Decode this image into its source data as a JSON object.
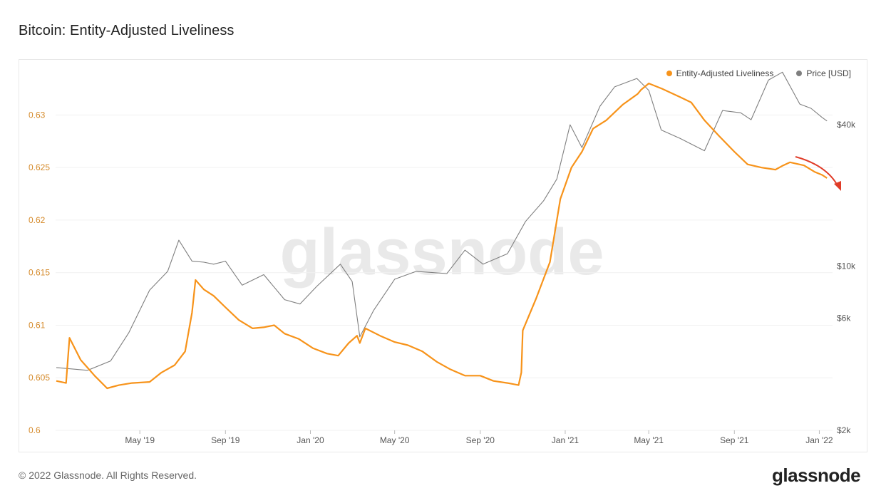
{
  "page": {
    "title": "Bitcoin: Entity-Adjusted Liveliness",
    "copyright": "© 2022 Glassnode. All Rights Reserved.",
    "brand": "glassnode",
    "watermark": "glassnode"
  },
  "legend": {
    "liveliness": {
      "label": "Entity-Adjusted Liveliness",
      "color": "#f7931a"
    },
    "price": {
      "label": "Price [USD]",
      "color": "#7f7f7f"
    }
  },
  "chart_data": {
    "type": "line",
    "title": "Bitcoin: Entity-Adjusted Liveliness",
    "x_ticks": [
      "May '19",
      "Sep '19",
      "Jan '20",
      "May '20",
      "Sep '20",
      "Jan '21",
      "May '21",
      "Sep '21",
      "Jan '22"
    ],
    "y_left": {
      "ticks": [
        "0.6",
        "0.605",
        "0.61",
        "0.615",
        "0.62",
        "0.625",
        "0.63"
      ],
      "range": [
        0.6,
        0.6345
      ]
    },
    "y_right": {
      "scale": "log",
      "ticks": [
        "$2k",
        "$6k",
        "$10k",
        "$40k"
      ],
      "tick_values": [
        2000,
        6000,
        10000,
        40000
      ],
      "range": [
        2000,
        70000
      ]
    },
    "grid": "horizontal",
    "legend_position": "top-right",
    "series": [
      {
        "name": "Entity-Adjusted Liveliness",
        "color": "#f7931a",
        "axis": "left",
        "x": [
          "2019-01-01",
          "2019-01-15",
          "2019-01-20",
          "2019-02-05",
          "2019-02-25",
          "2019-03-15",
          "2019-04-01",
          "2019-04-20",
          "2019-05-15",
          "2019-06-01",
          "2019-06-20",
          "2019-07-05",
          "2019-07-15",
          "2019-07-20",
          "2019-08-01",
          "2019-08-15",
          "2019-09-01",
          "2019-09-20",
          "2019-10-10",
          "2019-10-26",
          "2019-11-10",
          "2019-11-25",
          "2019-12-15",
          "2020-01-05",
          "2020-01-25",
          "2020-02-10",
          "2020-02-25",
          "2020-03-08",
          "2020-03-12",
          "2020-03-20",
          "2020-04-10",
          "2020-05-01",
          "2020-05-20",
          "2020-06-10",
          "2020-07-01",
          "2020-07-20",
          "2020-08-10",
          "2020-09-01",
          "2020-09-20",
          "2020-10-10",
          "2020-10-26",
          "2020-10-30",
          "2020-11-01",
          "2020-11-20",
          "2020-12-10",
          "2020-12-25",
          "2021-01-10",
          "2021-01-25",
          "2021-02-10",
          "2021-03-01",
          "2021-03-25",
          "2021-04-15",
          "2021-04-20",
          "2021-05-01",
          "2021-05-20",
          "2021-06-15",
          "2021-07-01",
          "2021-07-20",
          "2021-08-10",
          "2021-09-01",
          "2021-09-20",
          "2021-10-10",
          "2021-10-30",
          "2021-11-10",
          "2021-11-20",
          "2021-12-10",
          "2021-12-25",
          "2022-01-05",
          "2022-01-12"
        ],
        "values": [
          0.6047,
          0.6045,
          0.6088,
          0.6067,
          0.6052,
          0.604,
          0.6043,
          0.6045,
          0.6046,
          0.6055,
          0.6062,
          0.6075,
          0.6112,
          0.6143,
          0.6134,
          0.6128,
          0.6117,
          0.6105,
          0.6097,
          0.6098,
          0.61,
          0.6092,
          0.6087,
          0.6078,
          0.6073,
          0.6071,
          0.6083,
          0.609,
          0.6083,
          0.6097,
          0.609,
          0.6084,
          0.6081,
          0.6075,
          0.6065,
          0.6058,
          0.6052,
          0.6052,
          0.6047,
          0.6045,
          0.6043,
          0.6055,
          0.6095,
          0.6125,
          0.616,
          0.622,
          0.625,
          0.6265,
          0.6287,
          0.6295,
          0.631,
          0.632,
          0.6324,
          0.633,
          0.6325,
          0.6317,
          0.6312,
          0.6295,
          0.628,
          0.6265,
          0.6253,
          0.625,
          0.6248,
          0.6252,
          0.6255,
          0.6252,
          0.6246,
          0.6243,
          0.624
        ]
      },
      {
        "name": "Price [USD]",
        "color": "#7f7f7f",
        "axis": "right",
        "x": [
          "2019-01-01",
          "2019-02-15",
          "2019-03-20",
          "2019-04-15",
          "2019-05-15",
          "2019-06-10",
          "2019-06-26",
          "2019-07-15",
          "2019-08-01",
          "2019-08-15",
          "2019-09-01",
          "2019-09-25",
          "2019-10-26",
          "2019-11-25",
          "2019-12-17",
          "2020-01-10",
          "2020-02-13",
          "2020-03-01",
          "2020-03-12",
          "2020-04-01",
          "2020-05-01",
          "2020-06-01",
          "2020-07-15",
          "2020-08-10",
          "2020-09-05",
          "2020-10-10",
          "2020-11-05",
          "2020-12-01",
          "2020-12-20",
          "2021-01-08",
          "2021-01-25",
          "2021-02-20",
          "2021-03-13",
          "2021-04-14",
          "2021-05-01",
          "2021-05-19",
          "2021-06-15",
          "2021-07-20",
          "2021-08-15",
          "2021-09-10",
          "2021-09-25",
          "2021-10-20",
          "2021-11-09",
          "2021-12-04",
          "2021-12-20",
          "2022-01-05",
          "2022-01-12"
        ],
        "values": [
          3700,
          3600,
          3950,
          5200,
          7900,
          9500,
          12900,
          10500,
          10400,
          10200,
          10500,
          8300,
          9200,
          7200,
          6900,
          8200,
          10200,
          8600,
          5000,
          6500,
          8800,
          9500,
          9300,
          11700,
          10200,
          11300,
          15500,
          19000,
          23500,
          40000,
          32000,
          48000,
          58000,
          63000,
          56000,
          38000,
          35000,
          31000,
          46000,
          45000,
          42000,
          62000,
          67000,
          49000,
          47000,
          43000,
          41500
        ]
      }
    ]
  }
}
